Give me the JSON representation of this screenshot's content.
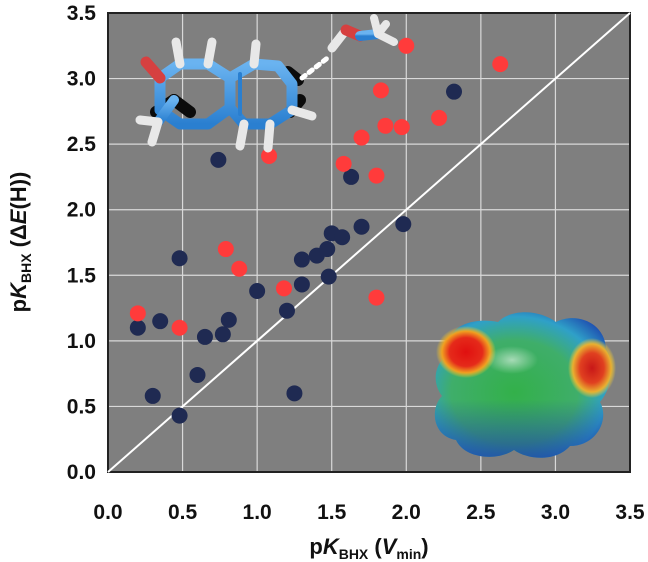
{
  "chart_data": {
    "type": "scatter",
    "xlabel": {
      "base": "pK",
      "sub": "BHX",
      "open": " (",
      "var": "V",
      "var_sub": "min",
      "close": ")"
    },
    "ylabel": {
      "base": "pK",
      "sub": "BHX",
      "open": " (",
      "delta": "Δ",
      "var": "E",
      "arg": "(H)",
      "close": ")"
    },
    "xlim": [
      0,
      3.5
    ],
    "ylim": [
      0,
      3.5
    ],
    "x_ticks": [
      "0.0",
      "0.5",
      "1.0",
      "1.5",
      "2.0",
      "2.5",
      "3.0",
      "3.5"
    ],
    "y_ticks": [
      "0.0",
      "0.5",
      "1.0",
      "1.5",
      "2.0",
      "2.5",
      "3.0",
      "3.5"
    ],
    "grid": true,
    "plot_background": "#7f7f7f",
    "grid_color": "#d9d9d9",
    "reference_line": {
      "from": [
        0,
        0
      ],
      "to": [
        3.5,
        3.5
      ],
      "color": "#ffffff"
    },
    "series": [
      {
        "color": "#1f2a52",
        "points": [
          [
            0.2,
            1.1
          ],
          [
            0.3,
            0.58
          ],
          [
            0.35,
            1.15
          ],
          [
            0.48,
            1.63
          ],
          [
            0.48,
            0.43
          ],
          [
            0.6,
            0.74
          ],
          [
            0.65,
            1.03
          ],
          [
            0.74,
            2.38
          ],
          [
            0.77,
            1.05
          ],
          [
            0.81,
            1.16
          ],
          [
            1.0,
            1.38
          ],
          [
            1.2,
            1.23
          ],
          [
            1.25,
            0.6
          ],
          [
            1.3,
            1.43
          ],
          [
            1.3,
            1.62
          ],
          [
            1.4,
            1.65
          ],
          [
            1.47,
            1.7
          ],
          [
            1.48,
            1.49
          ],
          [
            1.5,
            1.82
          ],
          [
            1.57,
            1.79
          ],
          [
            1.63,
            2.25
          ],
          [
            1.7,
            1.87
          ],
          [
            1.98,
            1.89
          ],
          [
            2.32,
            2.9
          ]
        ]
      },
      {
        "color": "#ff3b3b",
        "points": [
          [
            0.2,
            1.21
          ],
          [
            0.48,
            1.1
          ],
          [
            0.79,
            1.7
          ],
          [
            0.88,
            1.55
          ],
          [
            1.08,
            2.41
          ],
          [
            1.18,
            1.4
          ],
          [
            1.58,
            2.35
          ],
          [
            1.7,
            2.55
          ],
          [
            1.8,
            2.26
          ],
          [
            1.8,
            1.33
          ],
          [
            1.83,
            2.91
          ],
          [
            1.86,
            2.64
          ],
          [
            1.97,
            2.63
          ],
          [
            2.0,
            3.25
          ],
          [
            2.22,
            2.7
          ],
          [
            2.63,
            3.11
          ]
        ]
      }
    ]
  }
}
